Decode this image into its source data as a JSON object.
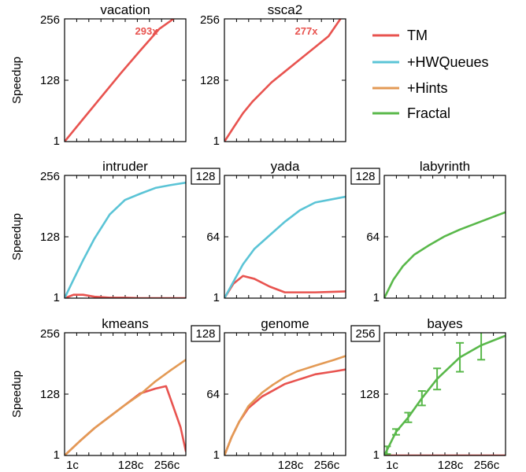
{
  "colors": {
    "TM": "#e8534f",
    "+HWQueues": "#5bc4d6",
    "+Hints": "#e39a55",
    "Fractal": "#59b84a"
  },
  "legend": [
    "TM",
    "+HWQueues",
    "+Hints",
    "Fractal"
  ],
  "chart_data": [
    {
      "type": "line",
      "title": "vacation",
      "ylabel": "Speedup",
      "yticks": [
        "1",
        "128",
        "256"
      ],
      "ylim": [
        1,
        256
      ],
      "xlim": [
        1,
        256
      ],
      "xticks": [],
      "boxed_ymax": false,
      "annotation": {
        "text": "293x",
        "series": "TM"
      },
      "series": [
        {
          "name": "TM",
          "x": [
            1,
            40,
            80,
            120,
            160,
            200,
            230
          ],
          "y": [
            1,
            48,
            96,
            144,
            190,
            235,
            256
          ]
        }
      ]
    },
    {
      "type": "line",
      "title": "ssca2",
      "ylabel": "",
      "yticks": [
        "1",
        "128",
        "256"
      ],
      "ylim": [
        1,
        256
      ],
      "xlim": [
        1,
        256
      ],
      "xticks": [],
      "boxed_ymax": false,
      "annotation": {
        "text": "277x",
        "series": "TM"
      },
      "series": [
        {
          "name": "TM",
          "x": [
            1,
            20,
            40,
            60,
            80,
            100,
            130,
            160,
            190,
            220,
            245
          ],
          "y": [
            1,
            30,
            60,
            84,
            104,
            124,
            148,
            172,
            196,
            220,
            256
          ]
        }
      ]
    },
    {
      "type": "line",
      "title": "intruder",
      "ylabel": "Speedup",
      "yticks": [
        "1",
        "128",
        "256"
      ],
      "ylim": [
        1,
        256
      ],
      "xlim": [
        1,
        256
      ],
      "xticks": [],
      "boxed_ymax": false,
      "series": [
        {
          "name": "TM",
          "x": [
            1,
            20,
            40,
            64,
            96,
            128,
            160,
            192,
            224,
            256
          ],
          "y": [
            1,
            8,
            8,
            4,
            2,
            2,
            1,
            1,
            1,
            1
          ]
        },
        {
          "name": "+HWQueues",
          "x": [
            1,
            20,
            40,
            64,
            96,
            128,
            160,
            192,
            224,
            256
          ],
          "y": [
            1,
            40,
            80,
            125,
            175,
            205,
            218,
            230,
            236,
            241
          ]
        }
      ]
    },
    {
      "type": "line",
      "title": "yada",
      "ylabel": "",
      "yticks": [
        "1",
        "64",
        "128"
      ],
      "ylim": [
        1,
        128
      ],
      "xlim": [
        1,
        256
      ],
      "xticks": [],
      "boxed_ymax": true,
      "series": [
        {
          "name": "TM",
          "x": [
            1,
            20,
            40,
            64,
            96,
            128,
            160,
            192,
            224,
            256
          ],
          "y": [
            1,
            16,
            24,
            21,
            13,
            7,
            7,
            7,
            7.5,
            8
          ]
        },
        {
          "name": "+HWQueues",
          "x": [
            1,
            20,
            40,
            64,
            96,
            128,
            160,
            192,
            224,
            256
          ],
          "y": [
            1,
            18,
            36,
            52,
            66,
            80,
            92,
            100,
            103,
            106
          ]
        }
      ]
    },
    {
      "type": "line",
      "title": "labyrinth",
      "ylabel": "",
      "yticks": [
        "1",
        "64",
        "128"
      ],
      "ylim": [
        1,
        128
      ],
      "xlim": [
        1,
        256
      ],
      "xticks": [],
      "boxed_ymax": true,
      "series": [
        {
          "name": "Fractal",
          "x": [
            1,
            20,
            40,
            64,
            96,
            128,
            160,
            192,
            224,
            256
          ],
          "y": [
            1,
            20,
            34,
            46,
            56,
            65,
            72,
            78,
            84,
            90
          ]
        }
      ]
    },
    {
      "type": "line",
      "title": "kmeans",
      "ylabel": "Speedup",
      "yticks": [
        "1",
        "128",
        "256"
      ],
      "ylim": [
        1,
        256
      ],
      "xlim": [
        1,
        320
      ],
      "xticks": [
        "1c",
        "128c",
        "256c"
      ],
      "boxed_ymax": false,
      "series": [
        {
          "name": "TM",
          "x": [
            1,
            40,
            80,
            120,
            160,
            200,
            240,
            268,
            306,
            320
          ],
          "y": [
            1,
            30,
            58,
            82,
            106,
            130,
            140,
            145,
            60,
            10
          ]
        },
        {
          "name": "+Hints",
          "x": [
            1,
            40,
            80,
            120,
            160,
            200,
            240,
            280,
            320
          ],
          "y": [
            1,
            30,
            58,
            82,
            106,
            128,
            155,
            178,
            200
          ]
        }
      ]
    },
    {
      "type": "line",
      "title": "genome",
      "ylabel": "",
      "yticks": [
        "1",
        "64",
        "128"
      ],
      "ylim": [
        1,
        128
      ],
      "xlim": [
        1,
        320
      ],
      "xticks": [
        "128c",
        "256c"
      ],
      "boxed_ymax": true,
      "series": [
        {
          "name": "TM",
          "x": [
            1,
            20,
            40,
            64,
            100,
            128,
            160,
            192,
            240,
            290,
            320
          ],
          "y": [
            1,
            20,
            36,
            50,
            62,
            68,
            75,
            79,
            85,
            88,
            90
          ]
        },
        {
          "name": "+Hints",
          "x": [
            1,
            20,
            40,
            64,
            100,
            128,
            160,
            192,
            240,
            290,
            320
          ],
          "y": [
            1,
            20,
            36,
            52,
            66,
            74,
            82,
            88,
            94,
            100,
            104
          ]
        }
      ]
    },
    {
      "type": "line",
      "title": "bayes",
      "ylabel": "",
      "yticks": [
        "1",
        "128",
        "256"
      ],
      "ylim": [
        1,
        256
      ],
      "xlim": [
        1,
        320
      ],
      "xticks": [
        "1c",
        "128c",
        "256c"
      ],
      "boxed_ymax": true,
      "series": [
        {
          "name": "TM",
          "x": [
            1,
            320
          ],
          "y": [
            1,
            1
          ]
        },
        {
          "name": "Fractal",
          "x": [
            1,
            8,
            32,
            64,
            100,
            140,
            200,
            256,
            320
          ],
          "y": [
            1,
            12,
            50,
            80,
            120,
            160,
            205,
            230,
            250
          ],
          "err": [
            0,
            8,
            6,
            10,
            15,
            22,
            30,
            30,
            0
          ]
        }
      ]
    }
  ]
}
